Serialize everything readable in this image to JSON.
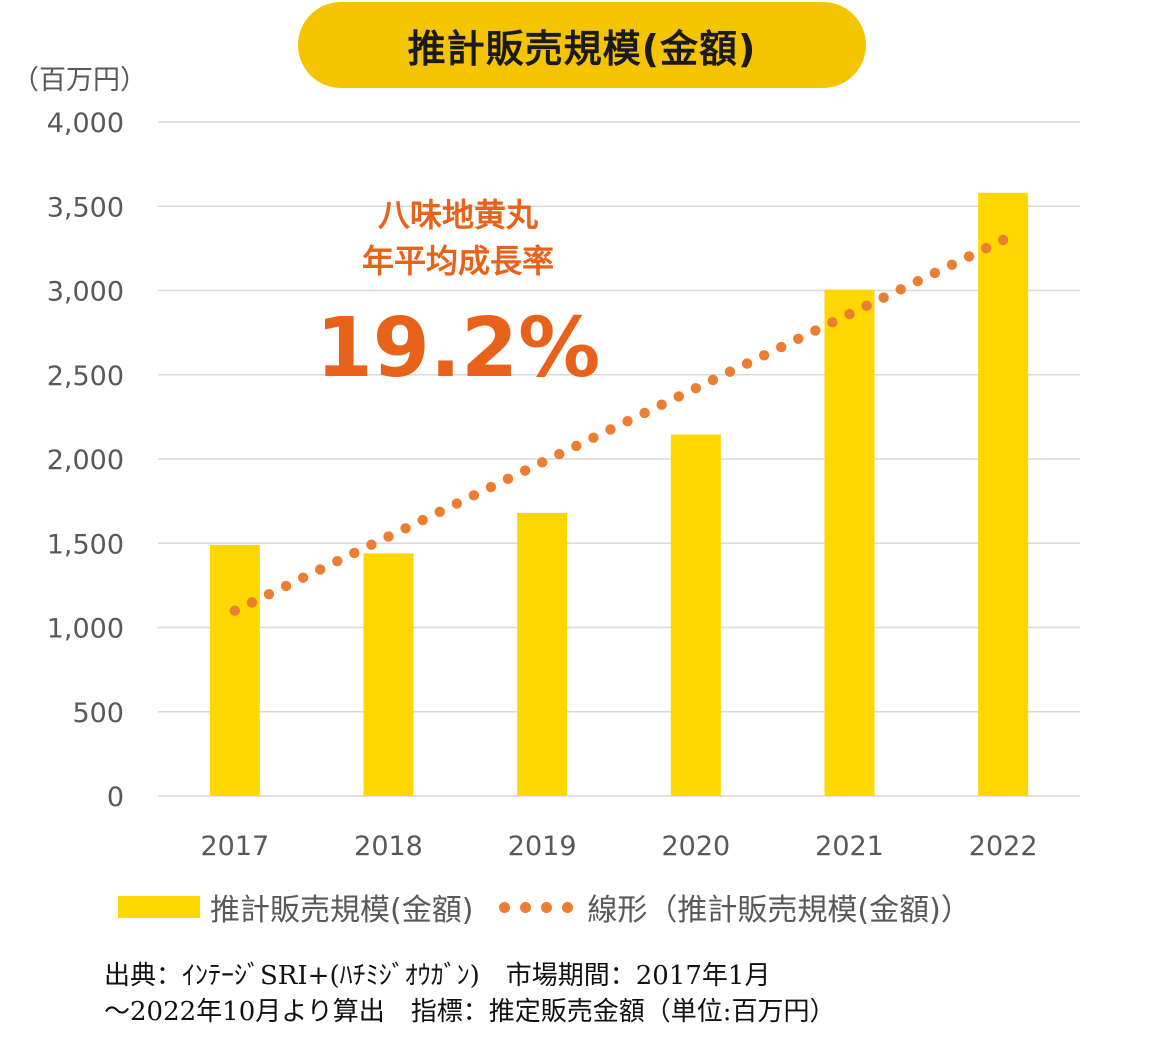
{
  "title": "推計販売規模(金額)",
  "unit_label": "（百万円）",
  "annotation": {
    "line1": "八味地黄丸",
    "line2": "年平均成長率",
    "rate": "19.2%"
  },
  "legend": {
    "bar_label": "推計販売規模(金額)",
    "trend_label": "線形（推計販売規模(金額)）"
  },
  "source": {
    "line1": "出典：ｲﾝﾃｰｼﾞSRI+(ﾊﾁﾐｼﾞｵｳｶﾞﾝ)　市場期間：2017年1月",
    "line2": "～2022年10月より算出　指標：推定販売金額（単位:百万円）"
  },
  "colors": {
    "bar": "#FFD700",
    "trend": "#ED7D31",
    "title_bg": "#F5C400",
    "annotation": "#E8621A",
    "grid": "#D9D9D9"
  },
  "chart_data": {
    "type": "bar",
    "categories": [
      "2017",
      "2018",
      "2019",
      "2020",
      "2021",
      "2022"
    ],
    "series": [
      {
        "name": "推計販売規模(金額)",
        "values": [
          1490,
          1440,
          1680,
          2145,
          3005,
          3580
        ]
      }
    ],
    "trendline": {
      "name": "線形（推計販売規模(金額)）",
      "type": "linear",
      "values": [
        1100,
        1540,
        1980,
        2420,
        2860,
        3300
      ]
    },
    "y_ticks": [
      "0",
      "500",
      "1,000",
      "1,500",
      "2,000",
      "2,500",
      "3,000",
      "3,500",
      "4,000"
    ],
    "ylim": [
      0,
      4000
    ],
    "ylabel": "（百万円）",
    "grid": true,
    "legend_position": "bottom"
  }
}
